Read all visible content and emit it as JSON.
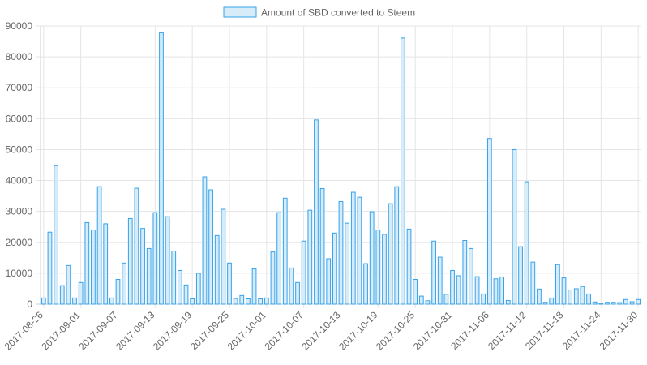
{
  "chart_data": {
    "type": "bar",
    "legend": {
      "label": "Amount of SBD converted to Steem",
      "position": "top-center"
    },
    "colors": {
      "bar_fill": "#d6ecf9",
      "bar_stroke": "#36a2eb",
      "grid": "#e5e5e5",
      "text": "#666666"
    },
    "grid": true,
    "ylim": [
      0,
      90000
    ],
    "y_ticks": [
      "0",
      "10000",
      "20000",
      "30000",
      "40000",
      "50000",
      "60000",
      "70000",
      "80000",
      "90000"
    ],
    "x_tick_labels": [
      "2017-08-26",
      "2017-09-01",
      "2017-09-07",
      "2017-09-13",
      "2017-09-19",
      "2017-09-25",
      "2017-10-01",
      "2017-10-07",
      "2017-10-13",
      "2017-10-19",
      "2017-10-25",
      "2017-10-31",
      "2017-11-06",
      "2017-11-12",
      "2017-11-18",
      "2017-11-24",
      "2017-11-30"
    ],
    "start_date": "2017-08-26",
    "values": [
      2000,
      23300,
      44800,
      6000,
      12500,
      2000,
      7000,
      26400,
      24000,
      38000,
      26000,
      2000,
      8000,
      13300,
      27700,
      37500,
      24500,
      18000,
      29600,
      87800,
      28300,
      17200,
      10900,
      6200,
      1700,
      10000,
      41200,
      37000,
      22200,
      30700,
      13300,
      1800,
      2800,
      1700,
      11400,
      1700,
      2000,
      16900,
      29600,
      34300,
      11700,
      7000,
      20400,
      30400,
      59600,
      37400,
      14700,
      23000,
      33200,
      26200,
      36200,
      34600,
      13100,
      29900,
      24000,
      22600,
      32500,
      38000,
      86100,
      24300,
      8000,
      2600,
      1100,
      20400,
      15200,
      3200,
      10900,
      9200,
      20600,
      18000,
      8900,
      3300,
      53600,
      8200,
      8800,
      1200,
      50000,
      18600,
      39600,
      13600,
      4900,
      600,
      2000,
      12800,
      8500,
      4600,
      5000,
      5700,
      3300,
      700,
      300,
      600,
      600,
      500,
      1500,
      800,
      1500
    ]
  }
}
